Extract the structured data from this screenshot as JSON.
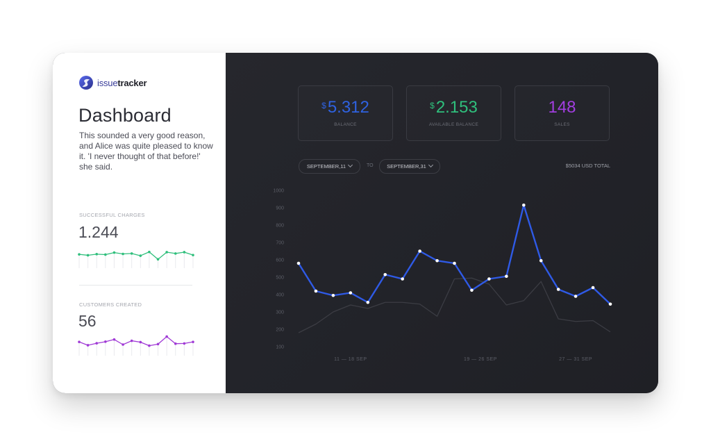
{
  "brand": {
    "name_part1": "issue",
    "name_part2": "tracker",
    "accent": "#3f46c8"
  },
  "sidebar": {
    "title": "Dashboard",
    "description": "This sounded a very good reason, and Alice was quite pleased to know it. 'I never thought of that before!' she said.",
    "charges": {
      "label": "SUCCESSFUL CHARGES",
      "value": "1.244",
      "color": "#2fbf7c",
      "points": [
        62,
        58,
        63,
        61,
        70,
        64,
        66,
        56,
        73,
        40,
        72,
        66,
        72,
        59
      ]
    },
    "customers": {
      "label": "CUSTOMERS CREATED",
      "value": "56",
      "color": "#a03ad6",
      "points": [
        62,
        47,
        56,
        63,
        73,
        50,
        67,
        61,
        45,
        52,
        86,
        54,
        55,
        62
      ]
    }
  },
  "kpis": [
    {
      "currency": "$",
      "value": "5.312",
      "label": "BALANCE",
      "color": "#2f62e0"
    },
    {
      "currency": "$",
      "value": "2.153",
      "label": "AVAILABLE BALANCE",
      "color": "#2fbf7c"
    },
    {
      "currency": "",
      "value": "148",
      "label": "SALES",
      "color": "#a23ee0"
    }
  ],
  "filters": {
    "from": "SEPTEMBER,11",
    "to_label": "TO",
    "to": "SEPTEMBER,31",
    "total": "$5034 USD TOTAL"
  },
  "chart_data": {
    "type": "line",
    "yticks": [
      "1000",
      "900",
      "800",
      "700",
      "600",
      "500",
      "400",
      "300",
      "200",
      "100"
    ],
    "ylim": [
      100,
      1000
    ],
    "xlabels": [
      {
        "text": "11 — 18 SEP",
        "index": 3
      },
      {
        "text": "19 — 26 SEP",
        "index": 10.5
      },
      {
        "text": "27 — 31 SEP",
        "index": 16
      }
    ],
    "series": [
      {
        "values": [
          580,
          420,
          395,
          410,
          355,
          515,
          490,
          650,
          595,
          580,
          425,
          490,
          505,
          915,
          595,
          430,
          390,
          440,
          345
        ],
        "color": "#2f5ae6",
        "markers": true
      },
      {
        "values": [
          180,
          230,
          300,
          340,
          320,
          355,
          355,
          345,
          275,
          490,
          495,
          460,
          340,
          365,
          475,
          260,
          245,
          250,
          185
        ],
        "color": "#3c3d44",
        "markers": false
      }
    ]
  }
}
